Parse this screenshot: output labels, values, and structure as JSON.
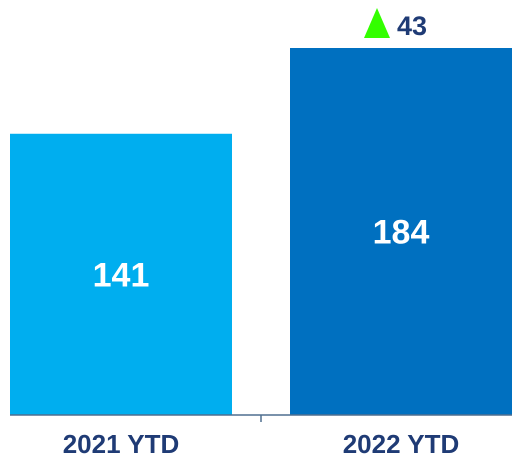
{
  "chart_data": {
    "type": "bar",
    "categories": [
      "2021 YTD",
      "2022 YTD"
    ],
    "values": [
      141,
      184
    ],
    "value_labels": [
      "141",
      "184"
    ],
    "ylim": [
      0,
      184
    ],
    "grid": false,
    "legend": "none",
    "bar_colors": [
      "#00aeef",
      "#0070c0"
    ],
    "label_color": "#1f3b75",
    "axis_color": "#4f6f8f",
    "annotation": {
      "text": "43",
      "icon": "triangle-up-icon",
      "icon_color": "#33ff00",
      "text_color": "#1f3b75"
    }
  }
}
